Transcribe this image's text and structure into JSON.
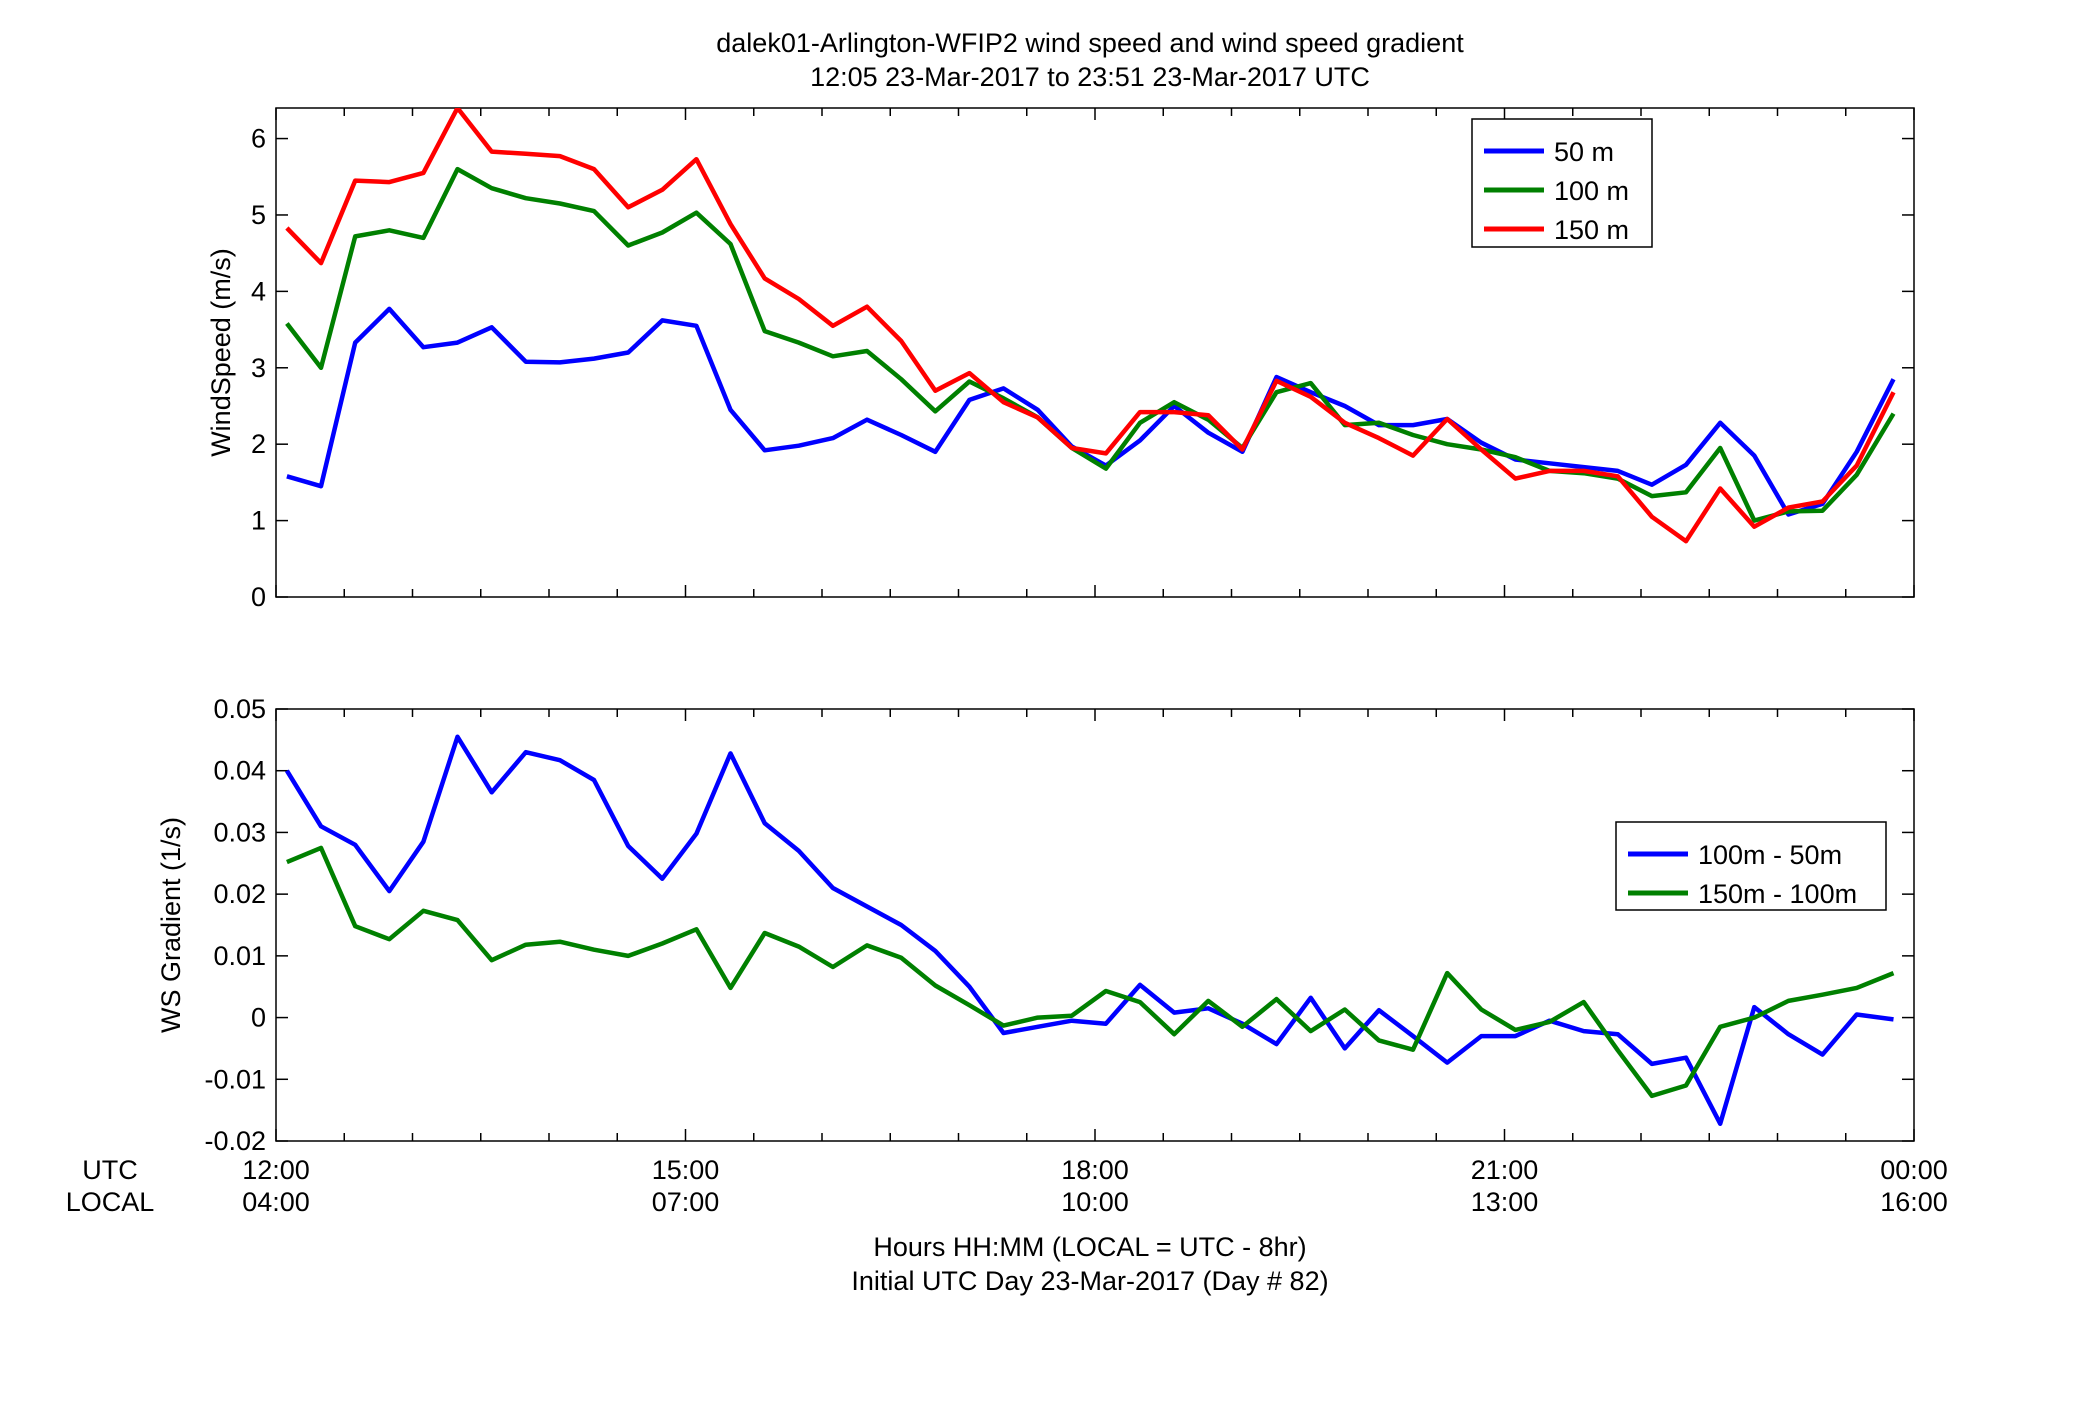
{
  "figure": {
    "title_line1": "dalek01-Arlington-WFIP2  wind speed and wind speed gradient",
    "title_line2": "12:05 23-Mar-2017 to 23:51 23-Mar-2017  UTC",
    "xlabel_line1": "Hours HH:MM  (LOCAL = UTC - 8hr)",
    "xlabel_line2": "Initial UTC Day 23-Mar-2017 (Day # 82)",
    "utc_row_label": "UTC",
    "local_row_label": "LOCAL"
  },
  "chart_data": [
    {
      "type": "line",
      "ylabel": "WindSpeed (m/s)",
      "xlim": [
        12.0,
        24.0
      ],
      "ylim": [
        0,
        6.4
      ],
      "yticks": [
        0,
        1,
        2,
        3,
        4,
        5,
        6
      ],
      "xticks_utc": [
        "12:00",
        "15:00",
        "18:00",
        "21:00",
        "00:00"
      ],
      "xticks_local": [
        "04:00",
        "07:00",
        "10:00",
        "13:00",
        "16:00"
      ],
      "grid": false,
      "legend_position": "top-right",
      "x": [
        12.08,
        12.33,
        12.58,
        12.83,
        13.08,
        13.33,
        13.58,
        13.83,
        14.08,
        14.33,
        14.58,
        14.83,
        15.08,
        15.33,
        15.58,
        15.83,
        16.08,
        16.33,
        16.58,
        16.83,
        17.08,
        17.33,
        17.58,
        17.83,
        18.08,
        18.33,
        18.58,
        18.83,
        19.08,
        19.33,
        19.58,
        19.83,
        20.08,
        20.33,
        20.58,
        20.83,
        21.08,
        21.33,
        21.58,
        21.83,
        22.08,
        22.33,
        22.58,
        22.83,
        23.08,
        23.33,
        23.58,
        23.85
      ],
      "series": [
        {
          "name": "50 m",
          "color": "#0000ff",
          "values": [
            1.58,
            1.45,
            3.33,
            3.77,
            3.27,
            3.33,
            3.53,
            3.08,
            3.07,
            3.12,
            3.2,
            3.62,
            3.55,
            2.45,
            1.92,
            1.98,
            2.08,
            2.32,
            2.12,
            1.9,
            2.58,
            2.73,
            2.45,
            1.97,
            1.72,
            2.05,
            2.5,
            2.15,
            1.9,
            2.88,
            2.68,
            2.5,
            2.25,
            2.25,
            2.33,
            2.02,
            1.8,
            1.75,
            1.7,
            1.65,
            1.47,
            1.73,
            2.28,
            1.85,
            1.08,
            1.22,
            1.9,
            2.85
          ]
        },
        {
          "name": "100 m",
          "color": "#008000",
          "values": [
            3.58,
            3.0,
            4.72,
            4.8,
            4.7,
            5.6,
            5.35,
            5.22,
            5.15,
            5.05,
            4.6,
            4.77,
            5.03,
            4.62,
            3.48,
            3.33,
            3.15,
            3.22,
            2.85,
            2.43,
            2.82,
            2.6,
            2.35,
            1.95,
            1.68,
            2.28,
            2.55,
            2.32,
            1.95,
            2.68,
            2.8,
            2.25,
            2.28,
            2.12,
            2.0,
            1.93,
            1.83,
            1.65,
            1.62,
            1.55,
            1.32,
            1.37,
            1.95,
            1.0,
            1.12,
            1.13,
            1.6,
            2.4
          ]
        },
        {
          "name": "150 m",
          "color": "#ff0000",
          "values": [
            4.83,
            4.37,
            5.45,
            5.43,
            5.55,
            6.4,
            5.83,
            5.8,
            5.77,
            5.6,
            5.1,
            5.33,
            5.73,
            4.88,
            4.17,
            3.9,
            3.55,
            3.8,
            3.35,
            2.7,
            2.93,
            2.55,
            2.35,
            1.95,
            1.88,
            2.42,
            2.42,
            2.38,
            1.93,
            2.83,
            2.62,
            2.28,
            2.08,
            1.85,
            2.33,
            1.93,
            1.55,
            1.65,
            1.65,
            1.58,
            1.05,
            0.73,
            1.42,
            0.92,
            1.17,
            1.25,
            1.72,
            2.68
          ]
        }
      ]
    },
    {
      "type": "line",
      "ylabel": "WS Gradient (1/s)",
      "xlim": [
        12.0,
        24.0
      ],
      "ylim": [
        -0.02,
        0.05
      ],
      "yticks": [
        -0.02,
        -0.01,
        0,
        0.01,
        0.02,
        0.03,
        0.04,
        0.05
      ],
      "ytick_labels": [
        "-0.02",
        "-0.01",
        "0",
        "0.01",
        "0.02",
        "0.03",
        "0.04",
        "0.05"
      ],
      "xticks_utc": [
        "12:00",
        "15:00",
        "18:00",
        "21:00",
        "00:00"
      ],
      "xticks_local": [
        "04:00",
        "07:00",
        "10:00",
        "13:00",
        "16:00"
      ],
      "grid": false,
      "legend_position": "right",
      "x": [
        12.08,
        12.33,
        12.58,
        12.83,
        13.08,
        13.33,
        13.58,
        13.83,
        14.08,
        14.33,
        14.58,
        14.83,
        15.08,
        15.33,
        15.58,
        15.83,
        16.08,
        16.33,
        16.58,
        16.83,
        17.08,
        17.33,
        17.58,
        17.83,
        18.08,
        18.33,
        18.58,
        18.83,
        19.08,
        19.33,
        19.58,
        19.83,
        20.08,
        20.33,
        20.58,
        20.83,
        21.08,
        21.33,
        21.58,
        21.83,
        22.08,
        22.33,
        22.58,
        22.83,
        23.08,
        23.33,
        23.58,
        23.85
      ],
      "series": [
        {
          "name": "100m - 50m",
          "color": "#0000ff",
          "values": [
            0.04,
            0.031,
            0.028,
            0.0205,
            0.0285,
            0.0455,
            0.0365,
            0.043,
            0.0417,
            0.0385,
            0.0278,
            0.0225,
            0.0298,
            0.0428,
            0.0315,
            0.027,
            0.021,
            0.018,
            0.015,
            0.0108,
            0.005,
            -0.0025,
            -0.0015,
            -0.0005,
            -0.001,
            0.0053,
            0.0008,
            0.0015,
            -0.001,
            -0.0043,
            0.0032,
            -0.005,
            0.0012,
            -0.003,
            -0.0073,
            -0.003,
            -0.003,
            -0.0005,
            -0.0022,
            -0.0027,
            -0.0075,
            -0.0065,
            -0.0172,
            0.0017,
            -0.0027,
            -0.006,
            0.0005,
            -0.0003
          ]
        },
        {
          "name": "150m - 100m",
          "color": "#008000",
          "values": [
            0.0252,
            0.0275,
            0.0148,
            0.0127,
            0.0173,
            0.0158,
            0.0093,
            0.0118,
            0.0123,
            0.011,
            0.01,
            0.012,
            0.0143,
            0.0048,
            0.0137,
            0.0115,
            0.0082,
            0.0117,
            0.0097,
            0.0052,
            0.002,
            -0.0013,
            0.0,
            0.0003,
            0.0043,
            0.0025,
            -0.0027,
            0.0027,
            -0.0015,
            0.003,
            -0.0022,
            0.0013,
            -0.0037,
            -0.0052,
            0.0072,
            0.0013,
            -0.002,
            -0.0007,
            0.0025,
            -0.0053,
            -0.0127,
            -0.011,
            -0.0015,
            0.0,
            0.0027,
            0.0037,
            0.0048,
            0.0072
          ]
        }
      ]
    }
  ]
}
